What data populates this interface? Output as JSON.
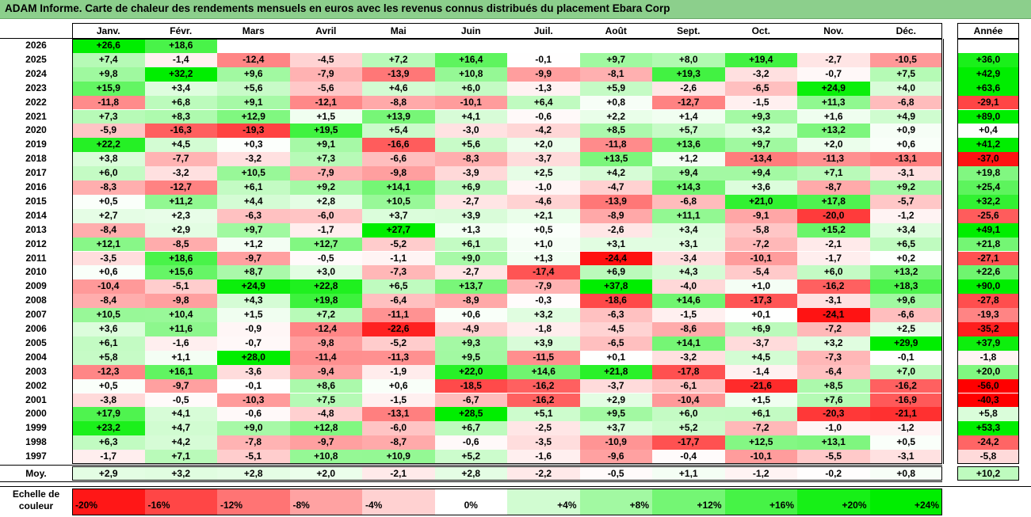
{
  "title": "ADAM Informe. Carte de chaleur des rendements mensuels en euros avec les revenus connus distribués du placement Ebara Corp",
  "chart_data": {
    "type": "heatmap",
    "columns": [
      "Janv.",
      "Févr.",
      "Mars",
      "Avril",
      "Mai",
      "Juin",
      "Juil.",
      "Août",
      "Sept.",
      "Oct.",
      "Nov.",
      "Déc."
    ],
    "year_column": "Année",
    "rows": [
      {
        "year": "2026",
        "months": [
          "+26,6",
          "+18,6",
          "",
          "",
          "",
          "",
          "",
          "",
          "",
          "",
          "",
          ""
        ],
        "annual": ""
      },
      {
        "year": "2025",
        "months": [
          "+7,4",
          "-1,4",
          "-12,4",
          "-4,5",
          "+7,2",
          "+16,4",
          "-0,1",
          "+9,7",
          "+8,0",
          "+19,4",
          "-2,7",
          "-10,5"
        ],
        "annual": "+36,0"
      },
      {
        "year": "2024",
        "months": [
          "+9,8",
          "+32,2",
          "+9,6",
          "-7,9",
          "-13,9",
          "+10,8",
          "-9,9",
          "-8,1",
          "+19,3",
          "-3,2",
          "-0,7",
          "+7,5"
        ],
        "annual": "+42,9"
      },
      {
        "year": "2023",
        "months": [
          "+15,9",
          "+3,4",
          "+5,6",
          "-5,6",
          "+4,6",
          "+6,0",
          "-1,3",
          "+5,9",
          "-2,6",
          "-6,5",
          "+24,9",
          "+4,0"
        ],
        "annual": "+63,6"
      },
      {
        "year": "2022",
        "months": [
          "-11,8",
          "+6,8",
          "+9,1",
          "-12,1",
          "-8,8",
          "-10,1",
          "+6,4",
          "+0,8",
          "-12,7",
          "-1,5",
          "+11,3",
          "-6,8"
        ],
        "annual": "-29,1"
      },
      {
        "year": "2021",
        "months": [
          "+7,3",
          "+8,3",
          "+12,9",
          "+1,5",
          "+13,9",
          "+4,1",
          "-0,6",
          "+2,2",
          "+1,4",
          "+9,3",
          "+1,6",
          "+4,9"
        ],
        "annual": "+89,0"
      },
      {
        "year": "2020",
        "months": [
          "-5,9",
          "-16,3",
          "-19,3",
          "+19,5",
          "+5,4",
          "-3,0",
          "-4,2",
          "+8,5",
          "+5,7",
          "+3,2",
          "+13,2",
          "+0,9"
        ],
        "annual": "+0,4"
      },
      {
        "year": "2019",
        "months": [
          "+22,2",
          "+4,5",
          "+0,3",
          "+9,1",
          "-16,6",
          "+5,6",
          "+2,0",
          "-11,8",
          "+13,6",
          "+9,7",
          "+2,0",
          "+0,6"
        ],
        "annual": "+41,2"
      },
      {
        "year": "2018",
        "months": [
          "+3,8",
          "-7,7",
          "-3,2",
          "+7,3",
          "-6,6",
          "-8,3",
          "-3,7",
          "+13,5",
          "+1,2",
          "-13,4",
          "-11,3",
          "-13,1"
        ],
        "annual": "-37,0"
      },
      {
        "year": "2017",
        "months": [
          "+6,0",
          "-3,2",
          "+10,5",
          "-7,9",
          "-9,8",
          "-3,9",
          "+2,5",
          "+4,2",
          "+9,4",
          "+9,4",
          "+7,1",
          "-3,1"
        ],
        "annual": "+19,8"
      },
      {
        "year": "2016",
        "months": [
          "-8,3",
          "-12,7",
          "+6,1",
          "+9,2",
          "+14,1",
          "+6,9",
          "-1,0",
          "-4,7",
          "+14,3",
          "+3,6",
          "-8,7",
          "+9,2"
        ],
        "annual": "+25,4"
      },
      {
        "year": "2015",
        "months": [
          "+0,5",
          "+11,2",
          "+4,4",
          "+2,8",
          "+10,5",
          "-2,7",
          "-4,6",
          "-13,9",
          "-6,8",
          "+21,0",
          "+17,8",
          "-5,7"
        ],
        "annual": "+32,2"
      },
      {
        "year": "2014",
        "months": [
          "+2,7",
          "+2,3",
          "-6,3",
          "-6,0",
          "+3,7",
          "+3,9",
          "+2,1",
          "-8,9",
          "+11,1",
          "-9,1",
          "-20,0",
          "-1,2"
        ],
        "annual": "-25,6"
      },
      {
        "year": "2013",
        "months": [
          "-8,4",
          "+2,9",
          "+9,7",
          "-1,7",
          "+27,7",
          "+1,3",
          "+0,5",
          "-2,6",
          "+3,4",
          "-5,8",
          "+15,2",
          "+3,4"
        ],
        "annual": "+49,1"
      },
      {
        "year": "2012",
        "months": [
          "+12,1",
          "-8,5",
          "+1,2",
          "+12,7",
          "-5,2",
          "+6,1",
          "+1,0",
          "+3,1",
          "+3,1",
          "-7,2",
          "-2,1",
          "+6,5"
        ],
        "annual": "+21,8"
      },
      {
        "year": "2011",
        "months": [
          "-3,5",
          "+18,6",
          "-9,7",
          "-0,5",
          "-1,1",
          "+9,0",
          "+1,3",
          "-24,4",
          "-3,4",
          "-10,1",
          "-1,7",
          "+0,2"
        ],
        "annual": "-27,1"
      },
      {
        "year": "2010",
        "months": [
          "+0,6",
          "+15,6",
          "+8,7",
          "+3,0",
          "-7,3",
          "-2,7",
          "-17,4",
          "+6,9",
          "+4,3",
          "-5,4",
          "+6,0",
          "+13,2"
        ],
        "annual": "+22,6"
      },
      {
        "year": "2009",
        "months": [
          "-10,4",
          "-5,1",
          "+24,9",
          "+22,8",
          "+6,5",
          "+13,7",
          "-7,9",
          "+37,8",
          "-4,0",
          "+1,0",
          "-16,2",
          "+18,3"
        ],
        "annual": "+90,0"
      },
      {
        "year": "2008",
        "months": [
          "-8,4",
          "-9,8",
          "+4,3",
          "+19,8",
          "-6,4",
          "-8,9",
          "-0,3",
          "-18,6",
          "+14,6",
          "-17,3",
          "-3,1",
          "+9,6"
        ],
        "annual": "-27,8"
      },
      {
        "year": "2007",
        "months": [
          "+10,5",
          "+10,4",
          "+1,5",
          "+7,2",
          "-11,1",
          "+0,6",
          "+3,2",
          "-6,3",
          "-1,5",
          "+0,1",
          "-24,1",
          "-6,6"
        ],
        "annual": "-19,3"
      },
      {
        "year": "2006",
        "months": [
          "+3,6",
          "+11,6",
          "-0,9",
          "-12,4",
          "-22,6",
          "-4,9",
          "-1,8",
          "-4,5",
          "-8,6",
          "+6,9",
          "-7,2",
          "+2,5"
        ],
        "annual": "-35,2"
      },
      {
        "year": "2005",
        "months": [
          "+6,1",
          "-1,6",
          "-0,7",
          "-9,8",
          "-5,2",
          "+9,3",
          "+3,9",
          "-6,5",
          "+14,1",
          "-3,7",
          "+3,2",
          "+29,9"
        ],
        "annual": "+37,9"
      },
      {
        "year": "2004",
        "months": [
          "+5,8",
          "+1,1",
          "+28,0",
          "-11,4",
          "-11,3",
          "+9,5",
          "-11,5",
          "+0,1",
          "-3,2",
          "+4,5",
          "-7,3",
          "-0,1"
        ],
        "annual": "-1,8"
      },
      {
        "year": "2003",
        "months": [
          "-12,3",
          "+16,1",
          "-3,6",
          "-9,4",
          "-1,9",
          "+22,0",
          "+14,6",
          "+21,8",
          "-17,8",
          "-1,4",
          "-6,4",
          "+7,0"
        ],
        "annual": "+20,0"
      },
      {
        "year": "2002",
        "months": [
          "+0,5",
          "-9,7",
          "-0,1",
          "+8,6",
          "+0,6",
          "-18,5",
          "-16,2",
          "-3,7",
          "-6,1",
          "-21,6",
          "+8,5",
          "-16,2"
        ],
        "annual": "-56,0"
      },
      {
        "year": "2001",
        "months": [
          "-3,8",
          "-0,5",
          "-10,3",
          "+7,5",
          "-1,5",
          "-6,7",
          "-16,2",
          "+2,9",
          "-10,4",
          "+1,5",
          "+7,6",
          "-16,9"
        ],
        "annual": "-40,3"
      },
      {
        "year": "2000",
        "months": [
          "+17,9",
          "+4,1",
          "-0,6",
          "-4,8",
          "-13,1",
          "+28,5",
          "+5,1",
          "+9,5",
          "+6,0",
          "+6,1",
          "-20,3",
          "-21,1"
        ],
        "annual": "+5,8"
      },
      {
        "year": "1999",
        "months": [
          "+23,2",
          "+4,7",
          "+9,0",
          "+12,8",
          "-6,0",
          "+6,7",
          "-2,5",
          "+3,7",
          "+5,2",
          "-7,2",
          "-1,0",
          "-1,2"
        ],
        "annual": "+53,3"
      },
      {
        "year": "1998",
        "months": [
          "+6,3",
          "+4,2",
          "-7,8",
          "-9,7",
          "-8,7",
          "-0,6",
          "-3,5",
          "-10,9",
          "-17,7",
          "+12,5",
          "+13,1",
          "+0,5"
        ],
        "annual": "-24,2"
      },
      {
        "year": "1997",
        "months": [
          "-1,7",
          "+7,1",
          "-5,1",
          "+10,8",
          "+10,9",
          "+5,2",
          "-1,6",
          "-9,6",
          "-0,4",
          "-10,1",
          "-5,5",
          "-3,1"
        ],
        "annual": "-5,8"
      }
    ],
    "average": {
      "label": "Moy.",
      "months": [
        "+2,9",
        "+3,2",
        "+2,8",
        "+2,0",
        "-2,1",
        "+2,8",
        "-2,2",
        "-0,5",
        "+1,1",
        "-1,2",
        "-0,2",
        "+0,8"
      ],
      "annual": "+10,2"
    },
    "scale": {
      "label_line1": "Echelle de",
      "label_line2": "couleur",
      "stops": [
        "-20%",
        "-16%",
        "-12%",
        "-8%",
        "-4%",
        "0%",
        "+4%",
        "+8%",
        "+12%",
        "+16%",
        "+20%",
        "+24%"
      ],
      "stop_values": [
        -20,
        -16,
        -12,
        -8,
        -4,
        0,
        4,
        8,
        12,
        16,
        20,
        24
      ]
    },
    "colors": {
      "positive": "#00ee00",
      "negative": "#ff0000",
      "neutral": "#ffffff"
    }
  }
}
